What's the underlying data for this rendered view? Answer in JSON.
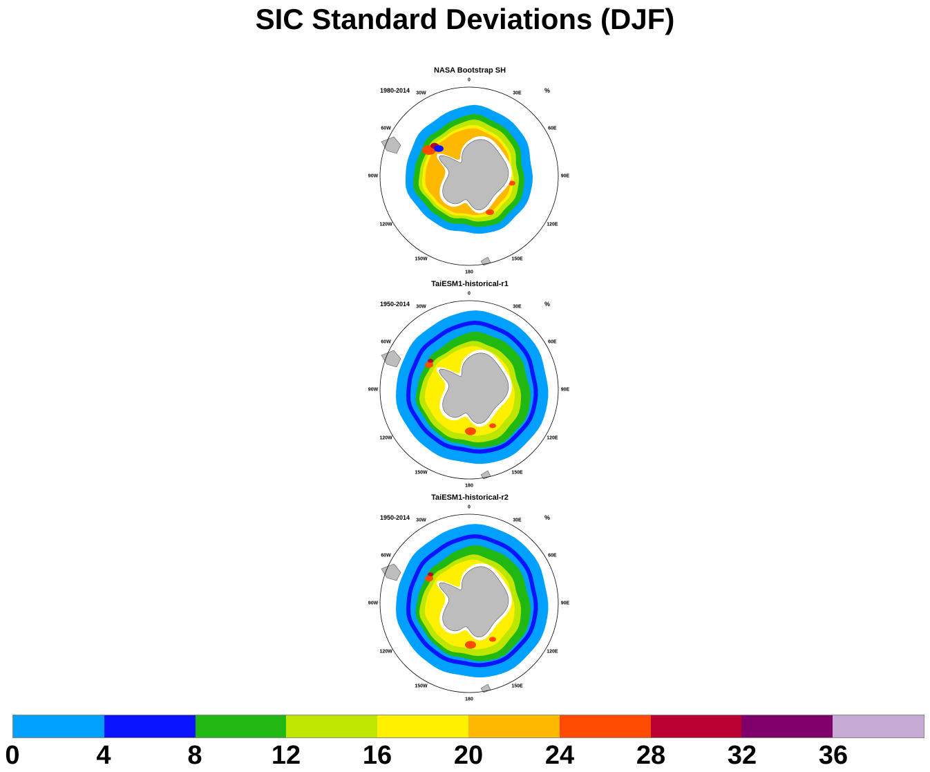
{
  "title": "SIC Standard Deviations (DJF)",
  "unit": "%",
  "longitude_labels": [
    "0",
    "30E",
    "60E",
    "90E",
    "120E",
    "150E",
    "180",
    "150W",
    "120W",
    "90W",
    "60W",
    "30W"
  ],
  "panels": [
    {
      "name": "NASA Bootstrap SH",
      "period": "1980-2014"
    },
    {
      "name": "TaiESM1-historical-r1",
      "period": "1950-2014"
    },
    {
      "name": "TaiESM1-historical-r2",
      "period": "1950-2014"
    }
  ],
  "colorbar": {
    "labels": [
      "0",
      "4",
      "8",
      "12",
      "16",
      "20",
      "24",
      "28",
      "32",
      "36"
    ],
    "colors": [
      "#00a0ff",
      "#0a14ff",
      "#22b814",
      "#bde600",
      "#fff000",
      "#ffb800",
      "#ff4a00",
      "#bb0033",
      "#7e0068",
      "#c6aad4"
    ]
  },
  "colors": {
    "land": "#bdbdbd",
    "ice_shelf": "#ffffff"
  }
}
